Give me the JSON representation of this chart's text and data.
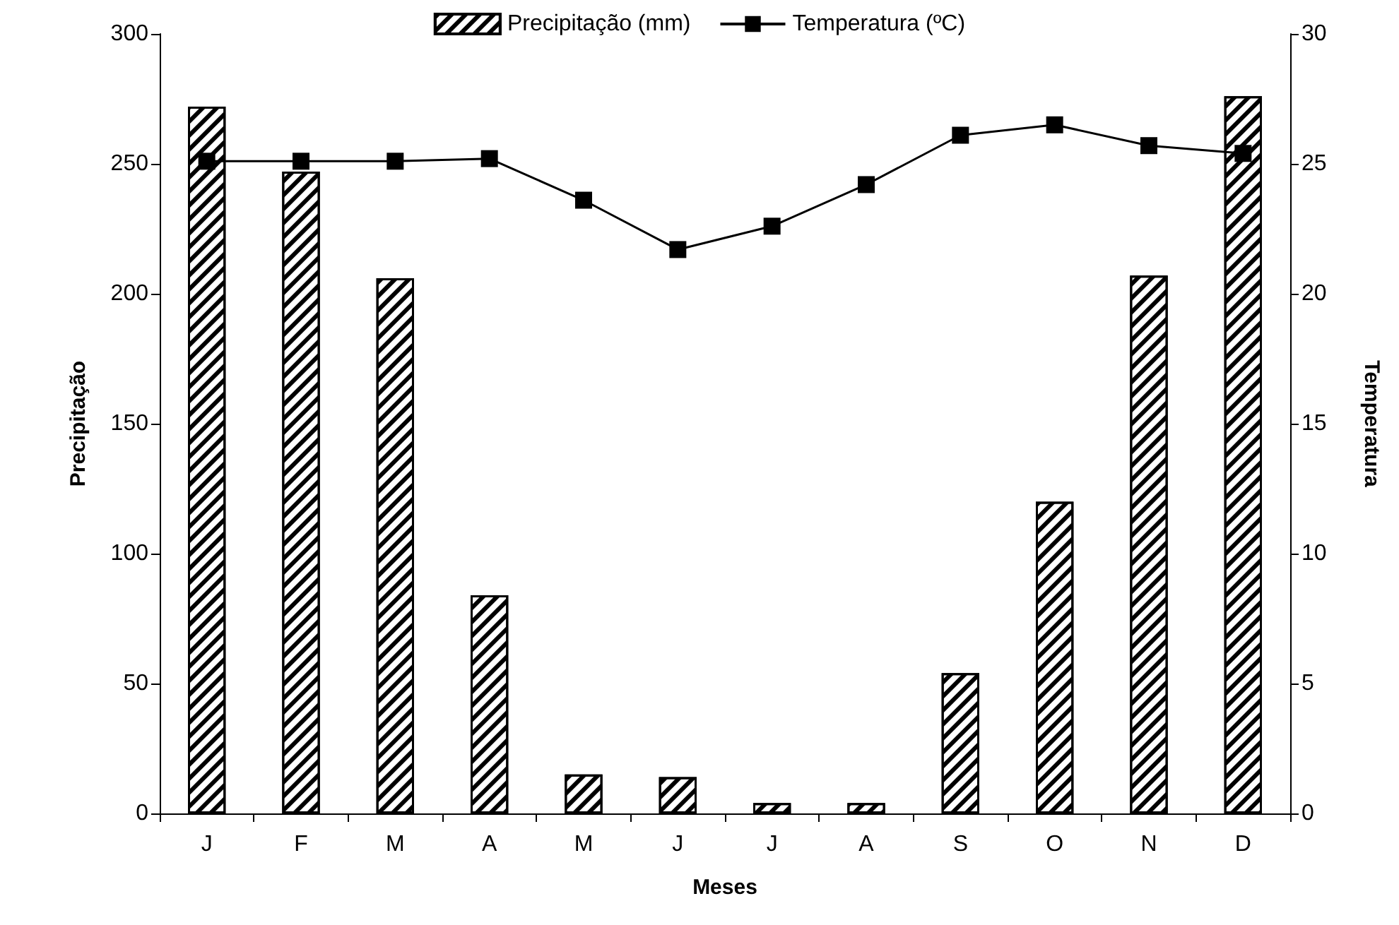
{
  "chart_data": {
    "type": "bar",
    "xlabel": "Meses",
    "ylabel": "Precipitação",
    "y2label": "Temperatura",
    "categories": [
      "J",
      "F",
      "M",
      "A",
      "M",
      "J",
      "J",
      "A",
      "S",
      "O",
      "N",
      "D"
    ],
    "series": [
      {
        "name": "Precipitação (mm)",
        "color": "#000000",
        "values": [
          272,
          247,
          206,
          84,
          15,
          14,
          4,
          4,
          54,
          120,
          207,
          276
        ]
      },
      {
        "name": "Temperatura (ºC)",
        "type": "line",
        "axis": "y2",
        "color": "#000000",
        "marker": "square",
        "values": [
          25.1,
          25.1,
          25.1,
          25.2,
          23.6,
          21.7,
          22.6,
          24.2,
          26.1,
          26.5,
          25.7,
          25.4
        ]
      }
    ],
    "ylim": [
      0,
      300
    ],
    "yticks": [
      0,
      50,
      100,
      150,
      200,
      250,
      300
    ],
    "y2lim": [
      0,
      30
    ],
    "y2ticks": [
      0,
      5,
      10,
      15,
      20,
      25,
      30
    ],
    "grid": false,
    "legend": "top"
  }
}
